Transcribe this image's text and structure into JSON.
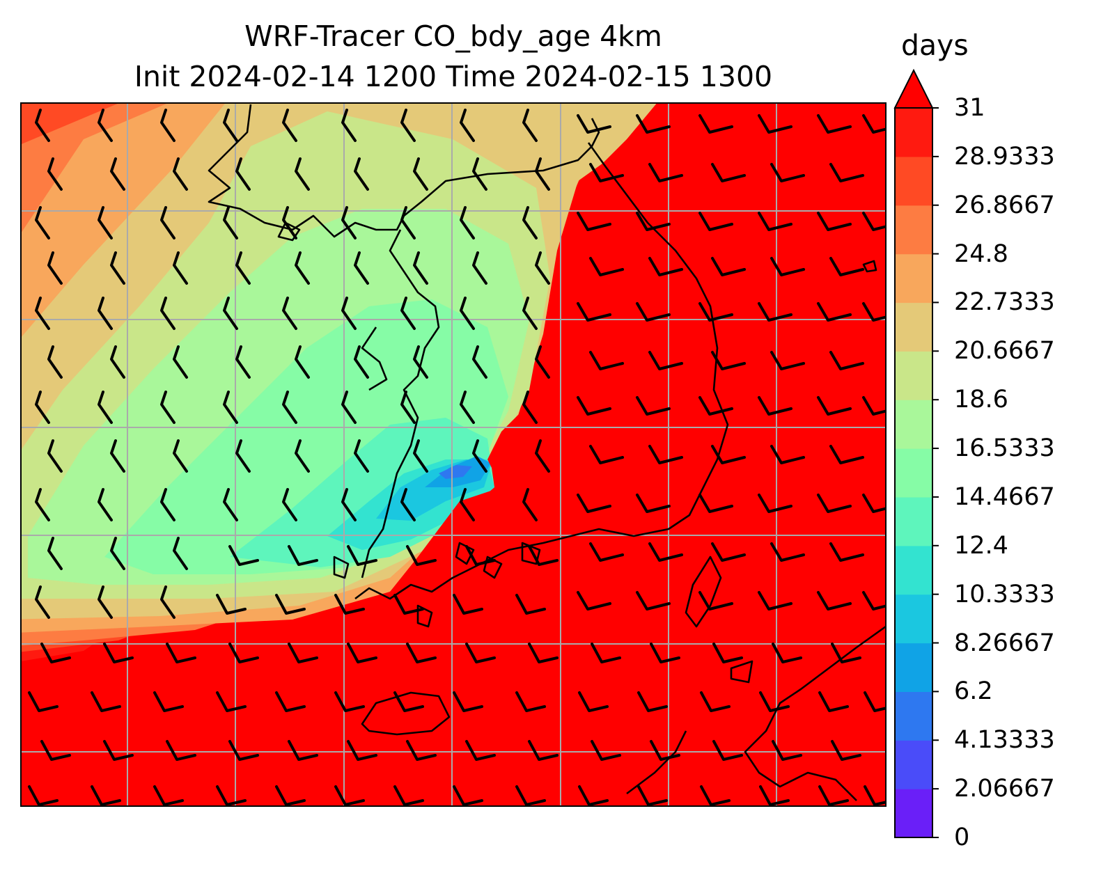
{
  "title_line1": "WRF-Tracer CO_bdy_age 4km",
  "title_line2": "Init 2024-02-14 1200 Time 2024-02-15 1300",
  "colorbar": {
    "unit": "days",
    "extend": "max",
    "levels": [
      "0",
      "2.06667",
      "4.13333",
      "6.2",
      "8.26667",
      "10.3333",
      "12.4",
      "14.4667",
      "16.5333",
      "18.6",
      "20.6667",
      "22.7333",
      "24.8",
      "26.8667",
      "28.9333",
      "31"
    ],
    "colors": [
      "#6a1ff8",
      "#4a4cf9",
      "#2e78f0",
      "#10a3e6",
      "#1bc7e0",
      "#33e3d0",
      "#5ef5bc",
      "#86fca6",
      "#a9f79a",
      "#c9e689",
      "#e4c978",
      "#f8a75c",
      "#fd7c42",
      "#ff4a24",
      "#ff1a10",
      "#ff0000"
    ]
  },
  "map": {
    "field_colors": {
      "red": "#ff0000",
      "darkred": "#ff1a10",
      "orange_red": "#ff4a24",
      "orange": "#fd7c42",
      "light_orange": "#f8a75c",
      "tan": "#e4c978",
      "yellow_green": "#c9e689",
      "light_green": "#a9f79a",
      "green": "#86fca6",
      "aqua_green": "#5ef5bc",
      "cyan": "#33e3d0",
      "sky": "#1bc7e0",
      "blue": "#10a3e6",
      "deep_blue": "#2e78f0"
    },
    "gridline_color": "#aaaaaa",
    "coastline_color": "#000000",
    "features": [
      "gridlines",
      "coastlines",
      "wind-barbs"
    ]
  }
}
